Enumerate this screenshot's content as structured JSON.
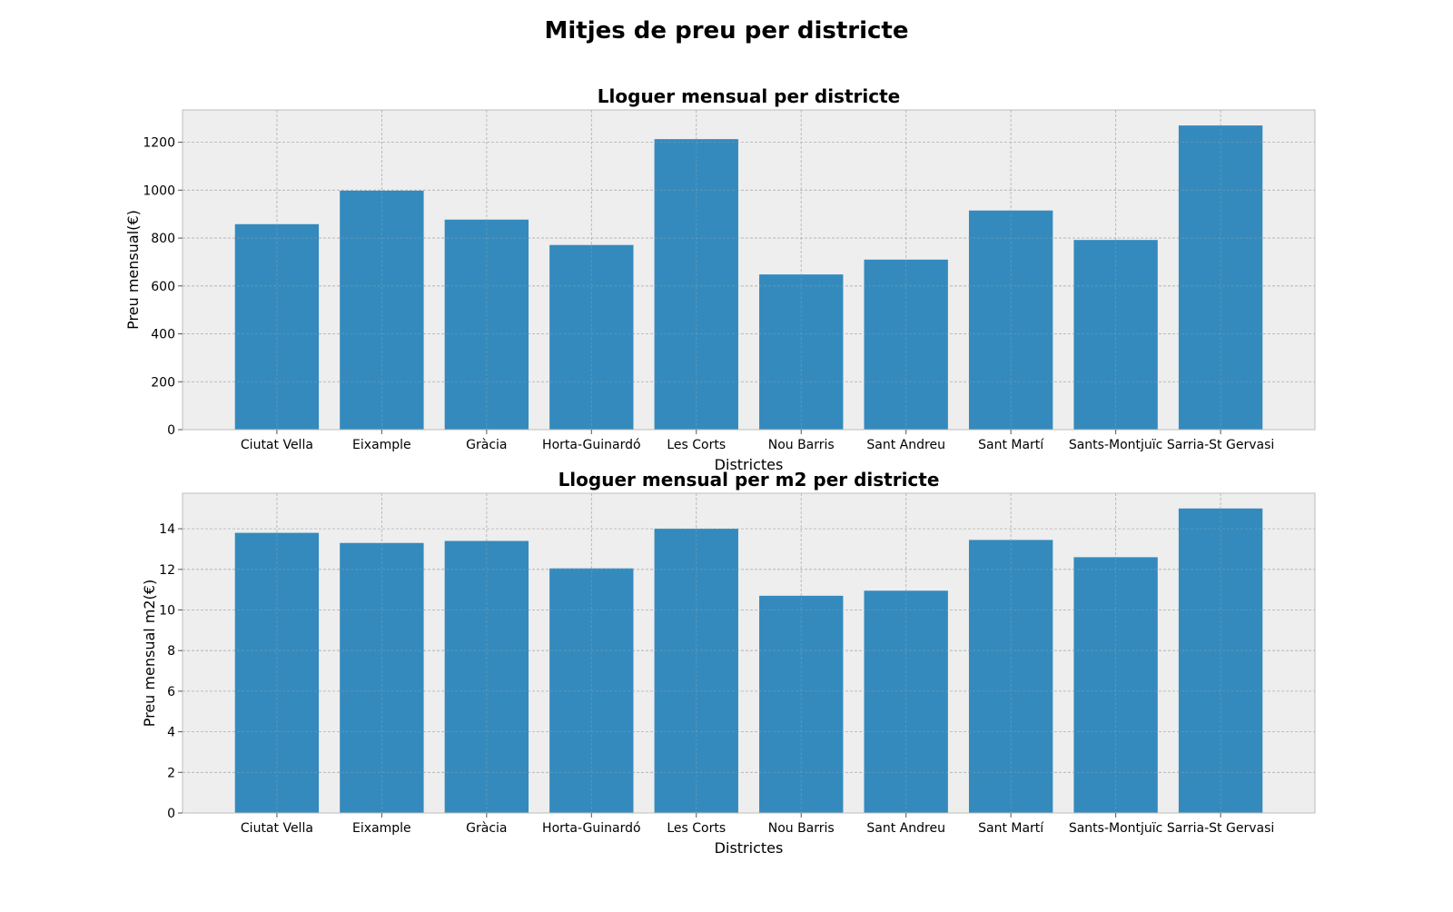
{
  "figure": {
    "title": "Mitjes de preu per districte"
  },
  "colors": {
    "bar": "#348ABD",
    "axes_background": "#EEEEEE",
    "grid": "#B2B2B2",
    "spine": "#BCBCBC",
    "text": "#000000"
  },
  "chart_data": [
    {
      "type": "bar",
      "title": "Lloguer mensual per districte",
      "xlabel": "Districtes",
      "ylabel": "Preu mensual(€)",
      "categories": [
        "Ciutat Vella",
        "Eixample",
        "Gràcia",
        "Horta-Guinardó",
        "Les Corts",
        "Nou Barris",
        "Sant Andreu",
        "Sant Martí",
        "Sants-Montjuïc",
        "Sarria-St Gervasi"
      ],
      "values": [
        858,
        998,
        877,
        771,
        1213,
        648,
        710,
        915,
        792,
        1270
      ],
      "ylim": [
        0,
        1335
      ],
      "yticks": [
        0,
        200,
        400,
        600,
        800,
        1000,
        1200
      ],
      "grid": true
    },
    {
      "type": "bar",
      "title": "Lloguer mensual per m2 per districte",
      "xlabel": "Districtes",
      "ylabel": "Preu mensual m2(€)",
      "categories": [
        "Ciutat Vella",
        "Eixample",
        "Gràcia",
        "Horta-Guinardó",
        "Les Corts",
        "Nou Barris",
        "Sant Andreu",
        "Sant Martí",
        "Sants-Montjuïc",
        "Sarria-St Gervasi"
      ],
      "values": [
        13.8,
        13.3,
        13.4,
        12.05,
        14.0,
        10.7,
        10.95,
        13.45,
        12.6,
        15.0
      ],
      "ylim": [
        0,
        15.75
      ],
      "yticks": [
        0,
        2,
        4,
        6,
        8,
        10,
        12,
        14
      ],
      "grid": true
    }
  ]
}
